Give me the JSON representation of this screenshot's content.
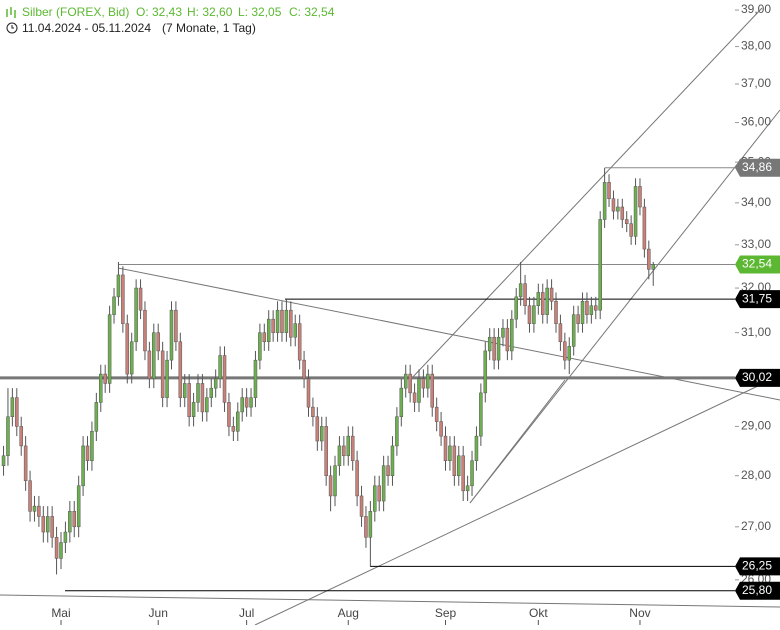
{
  "chart_data": {
    "type": "candlestick",
    "title": "Silber (FOREX, Bid)",
    "quote_labels": [
      "O: 32,43",
      "H: 32,60",
      "L: 32,05",
      "C: 32,54"
    ],
    "subtitle": "11.04.2024 - 05.11.2024",
    "period": "(7 Monate, 1 Tag)",
    "log_scale": true,
    "up_color": "#6db04f",
    "down_color": "#c98078",
    "xlim": [
      -0.8,
      165.5
    ],
    "ylim": [
      25.63,
      39.28
    ],
    "xticks": [
      {
        "value": 13,
        "label": "Mai"
      },
      {
        "value": 35,
        "label": "Jun"
      },
      {
        "value": 55,
        "label": "Jul"
      },
      {
        "value": 78,
        "label": "Aug"
      },
      {
        "value": 100,
        "label": "Sep"
      },
      {
        "value": 121,
        "label": "Okt"
      },
      {
        "value": 144,
        "label": "Nov"
      }
    ],
    "yticks": [
      {
        "value": 26,
        "label": "26,00"
      },
      {
        "value": 27,
        "label": "27,00"
      },
      {
        "value": 28,
        "label": "28,00"
      },
      {
        "value": 29,
        "label": "29,00"
      },
      {
        "value": 30,
        "label": "30,00"
      },
      {
        "value": 31,
        "label": "31,00"
      },
      {
        "value": 32,
        "label": "32,00"
      },
      {
        "value": 33,
        "label": "33,00"
      },
      {
        "value": 34,
        "label": "34,00"
      },
      {
        "value": 35,
        "label": "35,00"
      },
      {
        "value": 36,
        "label": "36,00"
      },
      {
        "value": 37,
        "label": "37,00"
      },
      {
        "value": 38,
        "label": "38,00"
      },
      {
        "value": 39,
        "label": "39,00"
      }
    ],
    "levels": [
      {
        "value": 34.86,
        "label": "34,86",
        "color": "#777777"
      },
      {
        "value": 32.54,
        "label": "32,54",
        "color": "#5cb832"
      },
      {
        "value": 31.75,
        "label": "31,75",
        "color": "#000000"
      },
      {
        "value": 30.02,
        "label": "30,02",
        "color": "#000000"
      },
      {
        "value": 26.25,
        "label": "26,25",
        "color": "#000000"
      },
      {
        "value": 25.8,
        "label": "25,80",
        "color": "#000000"
      }
    ],
    "open": [
      28.2,
      28.4,
      29.2,
      29.6,
      29.0,
      28.6,
      27.9,
      27.3,
      27.4,
      27.2,
      26.9,
      27.2,
      26.8,
      26.4,
      26.7,
      26.9,
      27.3,
      27.0,
      27.8,
      28.6,
      28.3,
      28.9,
      29.5,
      30.1,
      29.9,
      31.4,
      31.8,
      32.3,
      31.2,
      30.1,
      30.8,
      32.0,
      31.5,
      30.6,
      30.0,
      31.0,
      30.6,
      29.6,
      30.4,
      31.5,
      30.8,
      29.6,
      29.9,
      29.2,
      29.5,
      29.9,
      29.3,
      29.6,
      29.8,
      30.0,
      30.5,
      29.5,
      29.0,
      28.9,
      29.3,
      29.6,
      29.4,
      29.6,
      30.4,
      31.0,
      30.8,
      31.3,
      31.0,
      31.5,
      31.0,
      31.5,
      30.9,
      31.2,
      30.4,
      30.0,
      29.4,
      29.2,
      28.7,
      29.0,
      28.0,
      27.6,
      28.2,
      28.6,
      28.4,
      28.8,
      28.3,
      27.6,
      27.2,
      26.8,
      27.3,
      27.8,
      27.5,
      28.2,
      28.0,
      28.6,
      29.2,
      29.8,
      30.1,
      29.7,
      29.5,
      30.0,
      29.8,
      30.1,
      29.4,
      29.1,
      28.8,
      28.3,
      28.6,
      28.0,
      28.4,
      27.7,
      27.8,
      28.3,
      28.8,
      29.7,
      30.6,
      30.9,
      30.4,
      30.9,
      31.1,
      30.6,
      31.3,
      31.8,
      32.1,
      31.6,
      31.2,
      31.6,
      31.9,
      31.4,
      32.0,
      31.7,
      31.2,
      30.8,
      30.4,
      30.7,
      31.4,
      31.2,
      31.7,
      31.4,
      31.6,
      31.5,
      33.6,
      34.5,
      34.1,
      33.8,
      33.9,
      33.6,
      33.5,
      33.2,
      34.4,
      33.9,
      32.9,
      32.43
    ],
    "high": [
      28.6,
      29.8,
      29.8,
      29.8,
      29.2,
      28.8,
      28.1,
      27.6,
      27.6,
      27.4,
      27.4,
      27.4,
      27.0,
      26.9,
      27.1,
      27.5,
      27.5,
      28.0,
      28.8,
      28.8,
      29.1,
      29.7,
      30.3,
      30.3,
      31.6,
      32.0,
      32.6,
      32.5,
      31.4,
      31.0,
      32.2,
      32.2,
      31.7,
      30.8,
      31.2,
      31.2,
      30.8,
      30.6,
      31.7,
      31.7,
      31.0,
      30.1,
      30.1,
      29.7,
      30.1,
      30.1,
      29.8,
      30.0,
      30.2,
      30.7,
      30.7,
      29.7,
      29.2,
      29.5,
      29.8,
      29.8,
      29.8,
      30.6,
      31.2,
      31.2,
      31.5,
      31.5,
      31.7,
      31.7,
      31.75,
      31.7,
      31.4,
      31.4,
      30.6,
      30.2,
      29.6,
      29.4,
      29.2,
      29.2,
      28.2,
      28.4,
      28.8,
      28.8,
      29.0,
      29.0,
      28.5,
      27.8,
      27.4,
      27.5,
      28.0,
      28.0,
      28.4,
      28.4,
      28.8,
      29.4,
      30.0,
      30.3,
      30.3,
      29.9,
      30.2,
      30.2,
      30.3,
      30.3,
      29.6,
      29.3,
      29.0,
      28.8,
      28.8,
      28.6,
      28.6,
      28.0,
      28.5,
      29.0,
      29.9,
      30.8,
      31.1,
      31.1,
      31.1,
      31.3,
      31.3,
      31.5,
      32.0,
      32.6,
      32.3,
      31.8,
      31.8,
      32.1,
      32.1,
      32.2,
      32.2,
      31.9,
      31.4,
      31.0,
      30.9,
      31.6,
      31.6,
      31.9,
      31.9,
      31.8,
      31.8,
      33.8,
      34.86,
      34.7,
      34.3,
      34.1,
      34.1,
      33.8,
      33.7,
      34.6,
      34.6,
      34.1,
      33.1,
      32.6
    ],
    "low": [
      28.0,
      28.2,
      29.0,
      28.8,
      28.4,
      27.7,
      27.1,
      27.1,
      27.0,
      26.7,
      26.7,
      26.6,
      26.1,
      26.2,
      26.5,
      26.7,
      26.8,
      26.8,
      27.6,
      28.1,
      28.1,
      28.7,
      29.3,
      29.7,
      29.7,
      31.2,
      31.6,
      31.0,
      29.9,
      29.9,
      30.6,
      31.3,
      30.4,
      29.8,
      29.8,
      30.4,
      29.4,
      29.4,
      30.2,
      30.6,
      29.4,
      29.4,
      29.0,
      29.0,
      29.3,
      29.1,
      29.1,
      29.4,
      29.6,
      29.8,
      29.3,
      28.8,
      28.7,
      28.7,
      29.1,
      29.2,
      29.2,
      29.4,
      30.2,
      30.6,
      30.6,
      30.8,
      30.8,
      30.8,
      30.8,
      30.7,
      30.7,
      30.2,
      29.8,
      29.2,
      29.0,
      28.5,
      28.5,
      27.8,
      27.3,
      27.4,
      28.0,
      28.2,
      28.2,
      28.1,
      27.4,
      27.0,
      26.6,
      26.25,
      27.1,
      27.3,
      27.3,
      27.8,
      27.8,
      28.4,
      29.0,
      29.6,
      29.5,
      29.3,
      29.3,
      29.6,
      29.6,
      29.2,
      28.9,
      28.6,
      28.1,
      28.1,
      27.8,
      27.8,
      27.5,
      27.5,
      27.6,
      28.1,
      28.6,
      29.5,
      30.4,
      30.2,
      30.2,
      30.7,
      30.4,
      30.4,
      31.1,
      31.6,
      31.4,
      31.0,
      31.0,
      31.4,
      31.2,
      31.2,
      31.5,
      31.0,
      30.6,
      30.2,
      30.1,
      30.5,
      31.0,
      31.0,
      31.2,
      31.2,
      31.3,
      31.3,
      33.4,
      33.9,
      33.6,
      33.6,
      33.4,
      33.3,
      33.0,
      33.0,
      33.7,
      32.7,
      32.2,
      32.05
    ],
    "close": [
      28.4,
      29.2,
      29.6,
      29.0,
      28.6,
      27.9,
      27.3,
      27.4,
      27.2,
      26.9,
      27.2,
      26.8,
      26.4,
      26.7,
      26.9,
      27.3,
      27.0,
      27.8,
      28.6,
      28.3,
      28.9,
      29.5,
      30.1,
      29.9,
      31.4,
      31.8,
      32.3,
      31.2,
      30.1,
      30.8,
      32.0,
      31.5,
      30.6,
      30.0,
      31.0,
      30.6,
      29.6,
      30.4,
      31.5,
      30.8,
      29.6,
      29.9,
      29.2,
      29.5,
      29.9,
      29.3,
      29.6,
      29.8,
      30.0,
      30.5,
      29.5,
      29.0,
      28.9,
      29.3,
      29.6,
      29.4,
      29.6,
      30.4,
      31.0,
      30.8,
      31.3,
      31.0,
      31.5,
      31.0,
      31.5,
      30.9,
      31.2,
      30.4,
      30.0,
      29.4,
      29.2,
      28.7,
      29.0,
      28.0,
      27.6,
      28.2,
      28.6,
      28.4,
      28.8,
      28.3,
      27.6,
      27.2,
      26.8,
      27.3,
      27.8,
      27.5,
      28.2,
      28.0,
      28.6,
      29.2,
      29.8,
      30.1,
      29.7,
      29.5,
      30.0,
      29.8,
      30.1,
      29.4,
      29.1,
      28.8,
      28.3,
      28.6,
      28.0,
      28.4,
      27.7,
      27.8,
      28.3,
      28.8,
      29.7,
      30.6,
      30.9,
      30.4,
      30.9,
      31.1,
      30.6,
      31.3,
      31.8,
      32.1,
      31.6,
      31.2,
      31.6,
      31.9,
      31.4,
      32.0,
      31.7,
      31.2,
      30.8,
      30.4,
      30.7,
      31.4,
      31.2,
      31.7,
      31.4,
      31.6,
      31.5,
      33.6,
      34.5,
      34.1,
      33.8,
      33.9,
      33.6,
      33.5,
      33.2,
      34.4,
      33.9,
      32.9,
      32.43,
      32.54
    ]
  }
}
